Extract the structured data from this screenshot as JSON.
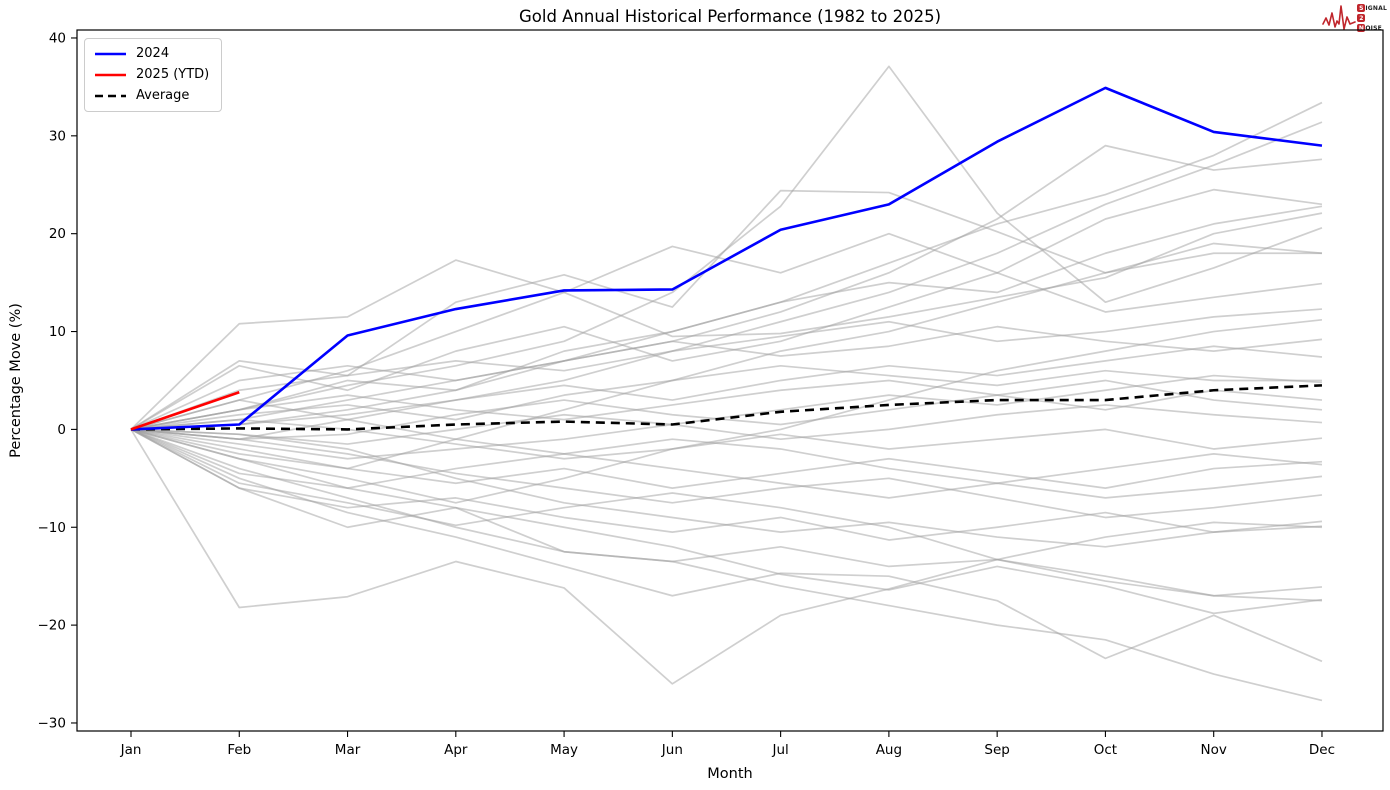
{
  "chart_data": {
    "type": "line",
    "title": "Gold Annual Historical Performance (1982 to 2025)",
    "xlabel": "Month",
    "ylabel": "Percentage Move (%)",
    "x_tick_labels": [
      "Jan",
      "Feb",
      "Mar",
      "Apr",
      "May",
      "Jun",
      "Jul",
      "Aug",
      "Sep",
      "Oct",
      "Nov",
      "Dec"
    ],
    "y_ticks": [
      {
        "value": -30,
        "label": "−30"
      },
      {
        "value": -20,
        "label": "−20"
      },
      {
        "value": -10,
        "label": "−10"
      },
      {
        "value": 0,
        "label": "0"
      },
      {
        "value": 10,
        "label": "10"
      },
      {
        "value": 20,
        "label": "20"
      },
      {
        "value": 30,
        "label": "30"
      },
      {
        "value": 40,
        "label": "40"
      }
    ],
    "ylim": [
      -30.8,
      40.8
    ],
    "grid": "off",
    "legend_position": "upper-left",
    "series": [
      {
        "name": "2024",
        "color": "#0000ff",
        "style": "solid",
        "values": [
          0,
          0.5,
          9.6,
          12.3,
          14.2,
          14.3,
          20.4,
          23.0,
          29.4,
          34.9,
          30.4,
          29.0
        ]
      },
      {
        "name": "2025 (YTD)",
        "color": "#ff0000",
        "style": "solid",
        "values": [
          0,
          3.8
        ]
      },
      {
        "name": "Average",
        "color": "#000000",
        "style": "dashed",
        "values": [
          0,
          0.1,
          0.0,
          0.5,
          0.8,
          0.5,
          1.8,
          2.5,
          3.0,
          3.0,
          4.0,
          4.5
        ]
      }
    ],
    "historical_color": "#a0a0a0",
    "historical_series": [
      [
        0,
        2,
        4.5,
        6.5,
        9,
        14,
        22.8,
        37.1,
        22.1,
        13,
        16.5,
        20.6
      ],
      [
        0,
        10.8,
        11.5,
        17.3,
        14,
        9.5,
        9.8,
        11.5,
        13.5,
        15.5,
        20,
        22.1
      ],
      [
        0,
        7,
        5.5,
        13,
        15.8,
        12.5,
        24.4,
        24.2,
        20.2,
        16,
        18,
        18.0
      ],
      [
        0,
        3,
        6,
        10,
        14,
        18.7,
        16,
        20,
        16,
        12,
        13.5,
        14.9
      ],
      [
        0,
        1,
        3,
        5,
        7,
        9,
        12,
        16,
        21.5,
        29,
        26.5,
        27.6
      ],
      [
        0,
        0.5,
        2,
        4,
        7,
        10,
        13,
        17,
        21,
        24,
        28,
        33.4
      ],
      [
        0,
        -1,
        1,
        3,
        5,
        8,
        11,
        14,
        18,
        23,
        27,
        31.4
      ],
      [
        0,
        2,
        5,
        4,
        8,
        10,
        13,
        15,
        14,
        18,
        21,
        22.8
      ],
      [
        0,
        -2,
        -4,
        -1,
        2,
        5,
        8,
        10,
        13,
        16,
        19,
        18.0
      ],
      [
        0,
        4,
        5.5,
        7,
        6,
        8,
        9.5,
        11,
        9,
        10,
        11.5,
        12.3
      ],
      [
        0,
        -3,
        -5,
        -7.5,
        -5,
        -2,
        0,
        3,
        6,
        8,
        10,
        11.2
      ],
      [
        0,
        5,
        6.5,
        5,
        7,
        9,
        7.5,
        8.5,
        10.5,
        9,
        8,
        9.2
      ],
      [
        0,
        0.5,
        1.5,
        3,
        4.5,
        3,
        5,
        6.5,
        5.5,
        7,
        8.5,
        7.4
      ],
      [
        0,
        -1.5,
        -3,
        -2,
        -1,
        0.5,
        2,
        3.5,
        2.5,
        4,
        5.5,
        4.8
      ],
      [
        0,
        2,
        3.5,
        2,
        1,
        2.5,
        4,
        5,
        3.5,
        2,
        4,
        3.0
      ],
      [
        0,
        -0.5,
        -1.5,
        0,
        1.5,
        0.5,
        -1,
        0,
        1.5,
        2.5,
        1.5,
        0.7
      ],
      [
        0,
        1,
        0,
        -1.5,
        -3,
        -2,
        -0.5,
        -2,
        -1,
        0,
        -2,
        -0.9
      ],
      [
        0,
        -2.5,
        -4,
        -5.5,
        -4,
        -6,
        -4.5,
        -3,
        -4.5,
        -6,
        -4,
        -3.3
      ],
      [
        0,
        3,
        1,
        -1,
        -2.5,
        -1,
        -2,
        -4,
        -5.5,
        -4,
        -2.5,
        -3.6
      ],
      [
        0,
        -4.5,
        -6,
        -4,
        -2.5,
        -4,
        -5.5,
        -7,
        -5.5,
        -7,
        -6,
        -4.8
      ],
      [
        0,
        -1,
        -2.5,
        -4.5,
        -6,
        -7.5,
        -6,
        -5,
        -7,
        -9,
        -8,
        -6.7
      ],
      [
        0,
        -6,
        -8,
        -7,
        -9,
        -10.5,
        -9,
        -11.3,
        -10,
        -8.5,
        -10.5,
        -9.4
      ],
      [
        0,
        -0.5,
        -2,
        -5,
        -7.5,
        -9,
        -10.5,
        -9.5,
        -11,
        -12,
        -10.5,
        -9.9
      ],
      [
        0,
        -3,
        -6,
        -8,
        -12.5,
        -13.5,
        -12,
        -14,
        -13.3,
        -15,
        -17,
        -16.1
      ],
      [
        0,
        -6,
        -10,
        -8,
        -10,
        -12,
        -14.8,
        -16.4,
        -14,
        -16,
        -18.8,
        -17.4
      ],
      [
        0,
        -18.2,
        -17.1,
        -13.5,
        -16.2,
        -26,
        -19,
        -16.3,
        -13.3,
        -15.5,
        -17,
        -17.5
      ],
      [
        0,
        -5,
        -8.5,
        -11,
        -14,
        -17,
        -14.7,
        -15,
        -17.5,
        -23.4,
        -19,
        -23.7
      ],
      [
        0,
        -4,
        -7,
        -10,
        -12.5,
        -13.5,
        -16,
        -18,
        -20,
        -21.5,
        -25,
        -27.7
      ],
      [
        0,
        6.5,
        4,
        8,
        10.5,
        7,
        9,
        12.5,
        16,
        21.5,
        24.5,
        23.0
      ],
      [
        0,
        -5.5,
        -7.5,
        -9.8,
        -8,
        -6.5,
        -8,
        -10,
        -13.3,
        -11,
        -9.5,
        -10.0
      ],
      [
        0,
        1.5,
        2.5,
        1,
        3.5,
        5,
        6.5,
        5.5,
        4.5,
        6,
        5,
        5.0
      ],
      [
        0,
        -1,
        -0.5,
        1.5,
        3,
        1.5,
        0.5,
        2,
        3.5,
        5,
        3,
        2.0
      ]
    ]
  },
  "legend": {
    "items": [
      "2024",
      "2025 (YTD)",
      "Average"
    ]
  },
  "logo": {
    "word1_initial": "S",
    "word1_rest": "IGNAL",
    "middle": "2",
    "word2_initial": "N",
    "word2_rest": "OISE",
    "color": "#c0262c"
  }
}
